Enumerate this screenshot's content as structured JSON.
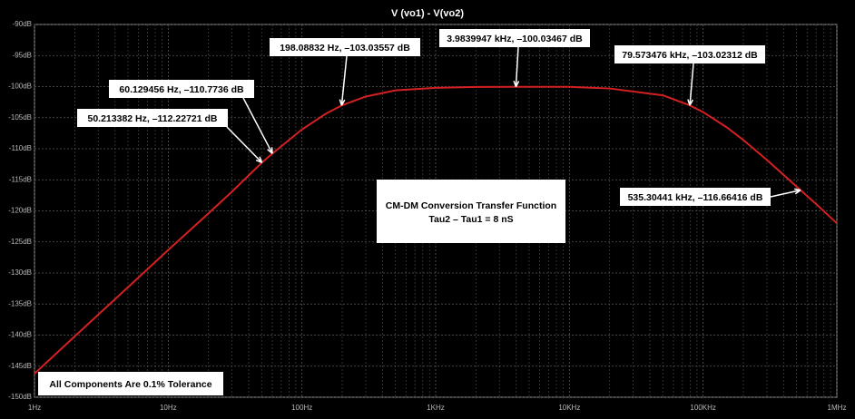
{
  "chart_data": {
    "type": "line",
    "title": "V (vo1) - V(vo2)",
    "x": [
      1,
      2,
      3,
      5,
      10,
      20,
      30,
      50.213382,
      60.129456,
      100,
      150,
      198.08832,
      300,
      500,
      1000,
      2000,
      3983.9947,
      10000,
      20000,
      50000,
      79573.476,
      100000,
      150000,
      200000,
      300000,
      535304.41,
      700000,
      1000000
    ],
    "values": [
      -146.2,
      -140.2,
      -136.7,
      -132.3,
      -126.3,
      -120.4,
      -116.9,
      -112.22721,
      -110.7736,
      -106.9,
      -104.4,
      -103.03557,
      -101.6,
      -100.6,
      -100.2,
      -100.05,
      -100.03467,
      -100.04,
      -100.3,
      -101.4,
      -103.02312,
      -104.1,
      -106.55,
      -108.6,
      -111.8,
      -116.66416,
      -118.9,
      -122
    ],
    "color": "#d42020",
    "log_x": true,
    "grid": true,
    "xlim": [
      1,
      1000000
    ],
    "xticks": [
      {
        "value": 1,
        "label": "1Hz"
      },
      {
        "value": 10,
        "label": "10Hz"
      },
      {
        "value": 100,
        "label": "100Hz"
      },
      {
        "value": 1000,
        "label": "1KHz"
      },
      {
        "value": 10000,
        "label": "10KHz"
      },
      {
        "value": 100000,
        "label": "100KHz"
      },
      {
        "value": 1000000,
        "label": "1MHz"
      }
    ],
    "ylim": [
      -150,
      -90
    ],
    "yticks": [
      {
        "value": -90,
        "label": "-90dB"
      },
      {
        "value": -95,
        "label": "-95dB"
      },
      {
        "value": -100,
        "label": "-100dB"
      },
      {
        "value": -105,
        "label": "-105dB"
      },
      {
        "value": -110,
        "label": "-110dB"
      },
      {
        "value": -115,
        "label": "-115dB"
      },
      {
        "value": -120,
        "label": "-120dB"
      },
      {
        "value": -125,
        "label": "-125dB"
      },
      {
        "value": -130,
        "label": "-130dB"
      },
      {
        "value": -135,
        "label": "-135dB"
      },
      {
        "value": -140,
        "label": "-140dB"
      },
      {
        "value": -145,
        "label": "-145dB"
      },
      {
        "value": -150,
        "label": "-150dB"
      }
    ],
    "annotations": [
      "198.08832 Hz, –103.03557 dB",
      "3.9839947 kHz, –100.03467 dB",
      "79.573476 kHz, –103.02312 dB",
      "60.129456 Hz, –110.7736 dB",
      "50.213382 Hz, –112.22721 dB",
      "535.30441 kHz, –116.66416 dB"
    ],
    "notes": [
      "CM-DM Conversion Transfer Function",
      "Tau2 – Tau1 = 8 nS"
    ],
    "footnote": "All Components Are 0.1% Tolerance"
  }
}
